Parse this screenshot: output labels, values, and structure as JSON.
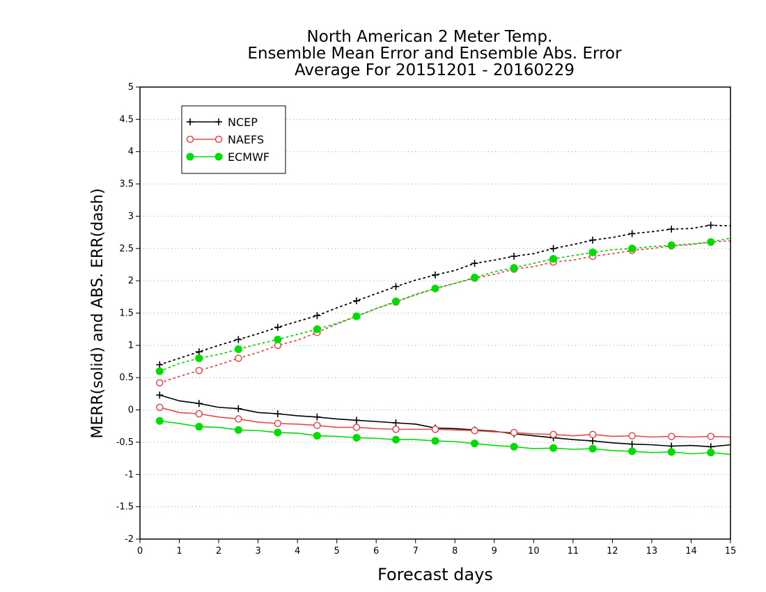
{
  "chart_data": {
    "type": "line",
    "title_lines": [
      "North American 2 Meter Temp.",
      "Ensemble Mean Error and Ensemble Abs. Error",
      "Average For 20151201 - 20160229"
    ],
    "xlabel": "Forecast days",
    "ylabel": "MERR(solid) and ABS. ERR(dash)",
    "xlim": [
      0,
      15
    ],
    "ylim": [
      -2,
      5
    ],
    "xticks": [
      0,
      1,
      2,
      3,
      4,
      5,
      6,
      7,
      8,
      9,
      10,
      11,
      12,
      13,
      14,
      15
    ],
    "yticks": [
      -2,
      -1.5,
      -1,
      -0.5,
      0,
      0.5,
      1,
      1.5,
      2,
      2.5,
      3,
      3.5,
      4,
      4.5,
      5
    ],
    "grid": "horizontal dotted",
    "legend_position": "top-left",
    "x": [
      0.5,
      1,
      1.5,
      2,
      2.5,
      3,
      3.5,
      4,
      4.5,
      5,
      5.5,
      6,
      6.5,
      7,
      7.5,
      8,
      8.5,
      9,
      9.5,
      10,
      10.5,
      11,
      11.5,
      12,
      12.5,
      13,
      13.5,
      14,
      14.5,
      15
    ],
    "series": [
      {
        "name": "NCEP",
        "color": "#000000",
        "marker": "plus",
        "merr": [
          0.23,
          0.14,
          0.1,
          0.04,
          0.02,
          -0.04,
          -0.06,
          -0.09,
          -0.11,
          -0.14,
          -0.16,
          -0.18,
          -0.2,
          -0.22,
          -0.28,
          -0.29,
          -0.31,
          -0.33,
          -0.37,
          -0.4,
          -0.43,
          -0.46,
          -0.48,
          -0.51,
          -0.53,
          -0.54,
          -0.56,
          -0.55,
          -0.57,
          -0.54
        ],
        "abs_err": [
          0.7,
          0.8,
          0.9,
          1.0,
          1.09,
          1.18,
          1.28,
          1.37,
          1.46,
          1.58,
          1.69,
          1.8,
          1.91,
          2.01,
          2.09,
          2.16,
          2.27,
          2.32,
          2.38,
          2.42,
          2.5,
          2.56,
          2.63,
          2.67,
          2.73,
          2.76,
          2.8,
          2.81,
          2.86,
          2.85
        ]
      },
      {
        "name": "NAEFS",
        "color": "#e84848",
        "marker": "open-circle",
        "merr": [
          0.04,
          -0.04,
          -0.06,
          -0.11,
          -0.14,
          -0.19,
          -0.21,
          -0.22,
          -0.24,
          -0.27,
          -0.27,
          -0.29,
          -0.3,
          -0.3,
          -0.3,
          -0.31,
          -0.32,
          -0.34,
          -0.35,
          -0.37,
          -0.38,
          -0.4,
          -0.38,
          -0.41,
          -0.4,
          -0.42,
          -0.41,
          -0.42,
          -0.41,
          -0.42
        ],
        "abs_err": [
          0.42,
          0.52,
          0.61,
          0.7,
          0.8,
          0.89,
          1.0,
          1.08,
          1.2,
          1.33,
          1.45,
          1.57,
          1.67,
          1.79,
          1.88,
          1.96,
          2.04,
          2.1,
          2.18,
          2.22,
          2.29,
          2.32,
          2.38,
          2.42,
          2.47,
          2.5,
          2.54,
          2.56,
          2.6,
          2.62
        ]
      },
      {
        "name": "ECMWF",
        "color": "#00dd00",
        "marker": "filled-circle",
        "merr": [
          -0.17,
          -0.21,
          -0.26,
          -0.27,
          -0.31,
          -0.32,
          -0.35,
          -0.36,
          -0.4,
          -0.41,
          -0.43,
          -0.44,
          -0.46,
          -0.46,
          -0.48,
          -0.49,
          -0.52,
          -0.55,
          -0.57,
          -0.6,
          -0.59,
          -0.61,
          -0.6,
          -0.63,
          -0.64,
          -0.66,
          -0.65,
          -0.68,
          -0.66,
          -0.69
        ],
        "abs_err": [
          0.6,
          0.72,
          0.8,
          0.86,
          0.94,
          1.02,
          1.09,
          1.17,
          1.25,
          1.34,
          1.45,
          1.57,
          1.68,
          1.78,
          1.88,
          1.96,
          2.05,
          2.14,
          2.2,
          2.27,
          2.34,
          2.39,
          2.44,
          2.48,
          2.5,
          2.53,
          2.55,
          2.57,
          2.6,
          2.66
        ]
      }
    ]
  }
}
